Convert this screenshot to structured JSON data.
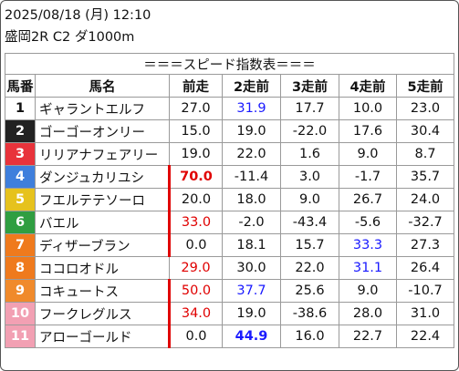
{
  "header": {
    "line1": "2025/08/18 (月) 12:10",
    "line2": "盛岡2R C2 ダ1000m"
  },
  "table": {
    "title": "＝＝＝スピード指数表＝＝＝",
    "columns": [
      "馬番",
      "馬名",
      "前走",
      "2走前",
      "3走前",
      "4走前",
      "5走前"
    ],
    "rows": [
      {
        "num": "1",
        "name": "ギャラントエルフ",
        "vals": [
          "27.0",
          "31.9",
          "17.7",
          "10.0",
          "23.0"
        ]
      },
      {
        "num": "2",
        "name": "ゴーゴーオンリー",
        "vals": [
          "15.0",
          "19.0",
          "-22.0",
          "17.6",
          "30.4"
        ]
      },
      {
        "num": "3",
        "name": "リリアナフェアリー",
        "vals": [
          "19.0",
          "22.0",
          "1.6",
          "9.0",
          "8.7"
        ]
      },
      {
        "num": "4",
        "name": "ダンジュカリユシ",
        "vals": [
          "70.0",
          "-11.4",
          "3.0",
          "-1.7",
          "35.7"
        ]
      },
      {
        "num": "5",
        "name": "フエルテテソーロ",
        "vals": [
          "20.0",
          "18.0",
          "9.0",
          "26.7",
          "24.0"
        ]
      },
      {
        "num": "6",
        "name": "バエル",
        "vals": [
          "33.0",
          "-2.0",
          "-43.4",
          "-5.6",
          "-32.7"
        ]
      },
      {
        "num": "7",
        "name": "ディザーブラン",
        "vals": [
          "0.0",
          "18.1",
          "15.7",
          "33.3",
          "27.3"
        ]
      },
      {
        "num": "8",
        "name": "ココロオドル",
        "vals": [
          "29.0",
          "30.0",
          "22.0",
          "31.1",
          "26.4"
        ]
      },
      {
        "num": "9",
        "name": "コキュートス",
        "vals": [
          "50.0",
          "37.7",
          "25.6",
          "9.0",
          "-10.7"
        ]
      },
      {
        "num": "10",
        "name": "フークレグルス",
        "vals": [
          "34.0",
          "19.0",
          "-38.6",
          "28.0",
          "31.0"
        ]
      },
      {
        "num": "11",
        "name": "アローゴールド",
        "vals": [
          "0.0",
          "44.9",
          "16.0",
          "22.7",
          "22.4"
        ]
      }
    ]
  },
  "colors": {
    "waku": [
      "#ffffff",
      "#222222",
      "#e8333b",
      "#3f7fdc",
      "#e6c21d",
      "#2f9e41",
      "#ef7a1d",
      "#ef7a1d",
      "#f08a2b",
      "#f2a0b3",
      "#f2a0b3"
    ],
    "waku_text": [
      "#111111",
      "#ffffff",
      "#ffffff",
      "#ffffff",
      "#ffffff",
      "#ffffff",
      "#ffffff",
      "#ffffff",
      "#ffffff",
      "#ffffff",
      "#ffffff"
    ],
    "red": "#e00000",
    "blue": "#1a1aff"
  }
}
